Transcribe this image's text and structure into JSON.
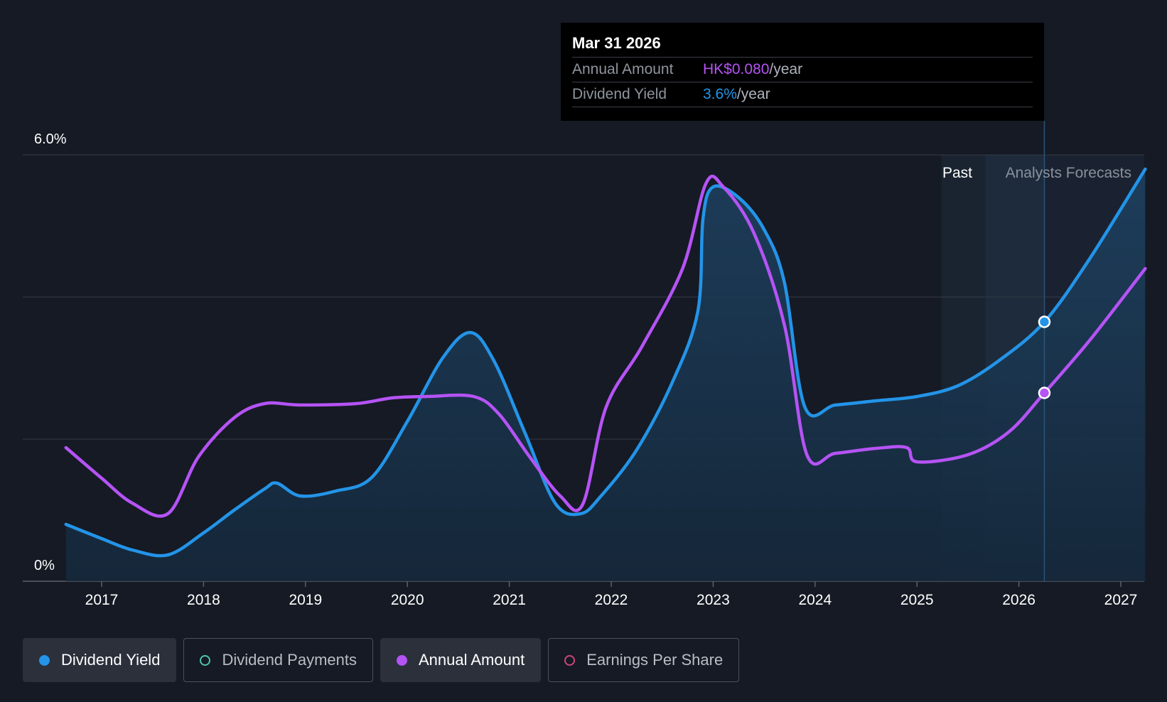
{
  "tooltip": {
    "date": "Mar 31 2026",
    "rows": [
      {
        "key": "Annual Amount",
        "value": "HK$0.080",
        "unit": "/year"
      },
      {
        "key": "Dividend Yield",
        "value": "3.6%",
        "unit": "/year"
      }
    ]
  },
  "regions": {
    "past": "Past",
    "forecast": "Analysts Forecasts"
  },
  "legend": [
    {
      "label": "Dividend Yield",
      "color": "#2394e8",
      "active": true,
      "icon": "filled-dot-icon"
    },
    {
      "label": "Dividend Payments",
      "color": "#4fc3b0",
      "active": false,
      "icon": "hollow-dot-icon"
    },
    {
      "label": "Annual Amount",
      "color": "#b553f5",
      "active": true,
      "icon": "filled-dot-icon"
    },
    {
      "label": "Earnings Per Share",
      "color": "#d0437a",
      "active": false,
      "icon": "hollow-dot-icon"
    }
  ],
  "chart_data": {
    "type": "line",
    "ylim": [
      0,
      6
    ],
    "y_tick_labels": [
      {
        "value": 6,
        "label": "6.0%"
      },
      {
        "value": 0,
        "label": "0%"
      }
    ],
    "gridlines": [
      0,
      2,
      4,
      6
    ],
    "x_ticks": [
      "2017",
      "2018",
      "2019",
      "2020",
      "2021",
      "2022",
      "2023",
      "2024",
      "2025",
      "2026",
      "2027"
    ],
    "xlim": [
      2016.69,
      2027.24
    ],
    "past_region": [
      2025.24,
      2025.67
    ],
    "forecast_region": [
      2025.67,
      2026.25
    ],
    "hover_x": 2026.25,
    "series": [
      {
        "name": "Dividend Yield",
        "color": "#2394e8",
        "fill": true,
        "points": [
          [
            2016.65,
            0.8
          ],
          [
            2017.0,
            0.6
          ],
          [
            2017.3,
            0.44
          ],
          [
            2017.65,
            0.37
          ],
          [
            2018.0,
            0.68
          ],
          [
            2018.3,
            1.0
          ],
          [
            2018.6,
            1.3
          ],
          [
            2018.72,
            1.38
          ],
          [
            2018.95,
            1.2
          ],
          [
            2019.3,
            1.27
          ],
          [
            2019.65,
            1.46
          ],
          [
            2020.0,
            2.25
          ],
          [
            2020.35,
            3.15
          ],
          [
            2020.62,
            3.5
          ],
          [
            2020.85,
            3.1
          ],
          [
            2021.15,
            2.1
          ],
          [
            2021.45,
            1.1
          ],
          [
            2021.7,
            0.95
          ],
          [
            2021.9,
            1.2
          ],
          [
            2022.25,
            1.85
          ],
          [
            2022.6,
            2.8
          ],
          [
            2022.85,
            3.8
          ],
          [
            2022.9,
            5.1
          ],
          [
            2023.0,
            5.55
          ],
          [
            2023.25,
            5.4
          ],
          [
            2023.5,
            4.95
          ],
          [
            2023.7,
            4.2
          ],
          [
            2023.9,
            2.45
          ],
          [
            2024.2,
            2.48
          ],
          [
            2024.6,
            2.54
          ],
          [
            2025.0,
            2.6
          ],
          [
            2025.4,
            2.75
          ],
          [
            2025.8,
            3.1
          ],
          [
            2026.25,
            3.65
          ],
          [
            2026.7,
            4.55
          ],
          [
            2027.24,
            5.8
          ]
        ]
      },
      {
        "name": "Annual Amount",
        "color": "#b553f5",
        "fill": false,
        "points": [
          [
            2016.65,
            1.88
          ],
          [
            2017.0,
            1.45
          ],
          [
            2017.3,
            1.1
          ],
          [
            2017.65,
            0.95
          ],
          [
            2017.95,
            1.75
          ],
          [
            2018.3,
            2.3
          ],
          [
            2018.6,
            2.5
          ],
          [
            2018.95,
            2.48
          ],
          [
            2019.5,
            2.5
          ],
          [
            2019.85,
            2.58
          ],
          [
            2020.2,
            2.6
          ],
          [
            2020.65,
            2.6
          ],
          [
            2020.9,
            2.35
          ],
          [
            2021.2,
            1.75
          ],
          [
            2021.5,
            1.2
          ],
          [
            2021.72,
            1.08
          ],
          [
            2021.95,
            2.45
          ],
          [
            2022.3,
            3.3
          ],
          [
            2022.7,
            4.4
          ],
          [
            2022.93,
            5.6
          ],
          [
            2023.1,
            5.55
          ],
          [
            2023.4,
            4.9
          ],
          [
            2023.7,
            3.6
          ],
          [
            2023.92,
            1.78
          ],
          [
            2024.2,
            1.8
          ],
          [
            2024.6,
            1.87
          ],
          [
            2024.9,
            1.88
          ],
          [
            2025.0,
            1.68
          ],
          [
            2025.5,
            1.78
          ],
          [
            2025.9,
            2.1
          ],
          [
            2026.25,
            2.65
          ],
          [
            2026.7,
            3.4
          ],
          [
            2027.24,
            4.4
          ]
        ]
      }
    ]
  }
}
